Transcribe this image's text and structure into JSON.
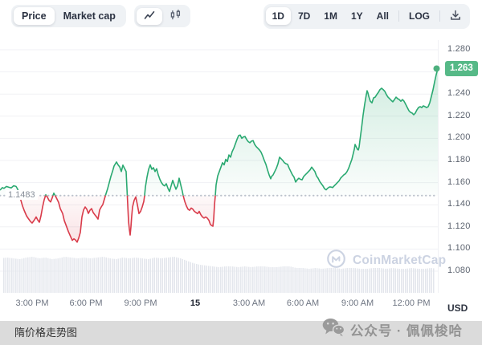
{
  "toolbar": {
    "metric_tabs": [
      {
        "label": "Price"
      },
      {
        "label": "Market cap"
      }
    ],
    "selected_metric": "Price",
    "chart_type_tabs": [
      {
        "icon": "line-chart-icon",
        "selected": true
      },
      {
        "icon": "candlestick-icon",
        "selected": false
      }
    ],
    "range_tabs": [
      {
        "label": "1D"
      },
      {
        "label": "7D"
      },
      {
        "label": "1M"
      },
      {
        "label": "1Y"
      },
      {
        "label": "All"
      }
    ],
    "selected_range": "1D",
    "log_label": "LOG",
    "download_icon": "download-icon"
  },
  "chart_data": {
    "type": "line",
    "unit": "USD",
    "baseline": {
      "label": "1.1483",
      "value": 1.1483
    },
    "current": {
      "label": "1.263",
      "value": 1.263
    },
    "colors": {
      "up": "#2aa971",
      "down": "#d93b4a",
      "badge": "#56b987",
      "dot": "#4db07e",
      "volume": "#e3e6ec",
      "grid": "#f0f1f4",
      "dotted": "#bcc2cc"
    },
    "y_axis": {
      "min": 1.08,
      "max": 1.28,
      "tick_labels": [
        "1.280",
        "1.240",
        "1.220",
        "1.200",
        "1.180",
        "1.160",
        "1.140",
        "1.120",
        "1.100",
        "1.080"
      ],
      "tick_values": [
        1.28,
        1.24,
        1.22,
        1.2,
        1.18,
        1.16,
        1.14,
        1.12,
        1.1,
        1.08
      ],
      "grid_values": [
        1.28,
        1.26,
        1.24,
        1.22,
        1.2,
        1.18,
        1.16,
        1.14,
        1.12,
        1.1,
        1.08
      ]
    },
    "x_axis": {
      "tick_labels": [
        "3:00 PM",
        "6:00 PM",
        "9:00 PM",
        "15",
        "3:00 AM",
        "6:00 AM",
        "9:00 AM",
        "12:00 PM"
      ],
      "bold_label": "15"
    },
    "series": [
      {
        "name": "price",
        "points": [
          [
            0,
            1.1532
          ],
          [
            3,
            1.1555
          ],
          [
            5,
            1.1548
          ],
          [
            8,
            1.1565
          ],
          [
            11,
            1.1558
          ],
          [
            14,
            1.1552
          ],
          [
            17,
            1.1572
          ],
          [
            20,
            1.1565
          ],
          [
            22,
            1.154
          ],
          [
            24,
            1.15
          ],
          [
            26,
            1.144
          ],
          [
            28,
            1.139
          ],
          [
            30,
            1.1351
          ],
          [
            33,
            1.13
          ],
          [
            35,
            1.1278
          ],
          [
            38,
            1.1248
          ],
          [
            40,
            1.1235
          ],
          [
            43,
            1.1265
          ],
          [
            45,
            1.129
          ],
          [
            47,
            1.1262
          ],
          [
            49,
            1.1242
          ],
          [
            51,
            1.13
          ],
          [
            53,
            1.138
          ],
          [
            55,
            1.1445
          ],
          [
            57,
            1.149
          ],
          [
            59,
            1.1468
          ],
          [
            61,
            1.144
          ],
          [
            63,
            1.1425
          ],
          [
            65,
            1.1462
          ],
          [
            67,
            1.1505
          ],
          [
            69,
            1.1478
          ],
          [
            71,
            1.145
          ],
          [
            73,
            1.142
          ],
          [
            75,
            1.1365
          ],
          [
            78,
            1.132
          ],
          [
            80,
            1.1258
          ],
          [
            83,
            1.12
          ],
          [
            85,
            1.116
          ],
          [
            88,
            1.111
          ],
          [
            90,
            1.1078
          ],
          [
            92,
            1.1092
          ],
          [
            94,
            1.1082
          ],
          [
            96,
            1.1062
          ],
          [
            98,
            1.11
          ],
          [
            100,
            1.115
          ],
          [
            102,
            1.129
          ],
          [
            104,
            1.1352
          ],
          [
            106,
            1.138
          ],
          [
            108,
            1.136
          ],
          [
            110,
            1.1322
          ],
          [
            112,
            1.135
          ],
          [
            114,
            1.1365
          ],
          [
            116,
            1.133
          ],
          [
            118,
            1.131
          ],
          [
            120,
            1.1292
          ],
          [
            122,
            1.127
          ],
          [
            124,
            1.1352
          ],
          [
            126,
            1.138
          ],
          [
            128,
            1.1402
          ],
          [
            130,
            1.1452
          ],
          [
            132,
            1.15
          ],
          [
            134,
            1.1546
          ],
          [
            136,
            1.16
          ],
          [
            138,
            1.1655
          ],
          [
            140,
            1.17
          ],
          [
            142,
            1.175
          ],
          [
            144,
            1.1775
          ],
          [
            145,
            1.1786
          ],
          [
            147,
            1.176
          ],
          [
            149,
            1.1742
          ],
          [
            151,
            1.17
          ],
          [
            153,
            1.1758
          ],
          [
            155,
            1.1728
          ],
          [
            157,
            1.17
          ],
          [
            158,
            1.155
          ],
          [
            159,
            1.14
          ],
          [
            160,
            1.125
          ],
          [
            161,
            1.118
          ],
          [
            162,
            1.1126
          ],
          [
            163,
            1.12
          ],
          [
            164,
            1.13
          ],
          [
            165,
            1.138
          ],
          [
            167,
            1.144
          ],
          [
            169,
            1.147
          ],
          [
            171,
            1.14
          ],
          [
            173,
            1.132
          ],
          [
            175,
            1.134
          ],
          [
            177,
            1.138
          ],
          [
            179,
            1.143
          ],
          [
            180,
            1.1483
          ],
          [
            181,
            1.156
          ],
          [
            183,
            1.165
          ],
          [
            185,
            1.172
          ],
          [
            187,
            1.176
          ],
          [
            189,
            1.172
          ],
          [
            191,
            1.1735
          ],
          [
            193,
            1.17
          ],
          [
            195,
            1.1725
          ],
          [
            197,
            1.167
          ],
          [
            199,
            1.163
          ],
          [
            201,
            1.16
          ],
          [
            203,
            1.158
          ],
          [
            205,
            1.157
          ],
          [
            207,
            1.159
          ],
          [
            209,
            1.155
          ],
          [
            211,
            1.152
          ],
          [
            213,
            1.157
          ],
          [
            215,
            1.162
          ],
          [
            217,
            1.158
          ],
          [
            219,
            1.154
          ],
          [
            221,
            1.157
          ],
          [
            223,
            1.164
          ],
          [
            225,
            1.158
          ],
          [
            227,
            1.152
          ],
          [
            228,
            1.1483
          ],
          [
            230,
            1.143
          ],
          [
            232,
            1.139
          ],
          [
            234,
            1.136
          ],
          [
            236,
            1.135
          ],
          [
            238,
            1.137
          ],
          [
            240,
            1.136
          ],
          [
            242,
            1.134
          ],
          [
            244,
            1.133
          ],
          [
            246,
            1.132
          ],
          [
            248,
            1.134
          ],
          [
            250,
            1.131
          ],
          [
            252,
            1.129
          ],
          [
            254,
            1.128
          ],
          [
            256,
            1.129
          ],
          [
            258,
            1.128
          ],
          [
            260,
            1.126
          ],
          [
            262,
            1.122
          ],
          [
            264,
            1.121
          ],
          [
            265,
            1.1206
          ],
          [
            266,
            1.127
          ],
          [
            267,
            1.14
          ],
          [
            268,
            1.148
          ],
          [
            269,
            1.158
          ],
          [
            271,
            1.166
          ],
          [
            273,
            1.17
          ],
          [
            275,
            1.174
          ],
          [
            277,
            1.178
          ],
          [
            279,
            1.176
          ],
          [
            281,
            1.181
          ],
          [
            283,
            1.179
          ],
          [
            285,
            1.185
          ],
          [
            287,
            1.183
          ],
          [
            289,
            1.188
          ],
          [
            291,
            1.191
          ],
          [
            293,
            1.195
          ],
          [
            295,
            1.199
          ],
          [
            297,
            1.2025
          ],
          [
            299,
            1.203
          ],
          [
            301,
            1.2
          ],
          [
            303,
            1.2013
          ],
          [
            305,
            1.2017
          ],
          [
            307,
            1.199
          ],
          [
            309,
            1.197
          ],
          [
            311,
            1.196
          ],
          [
            313,
            1.1975
          ],
          [
            315,
            1.198
          ],
          [
            317,
            1.1945
          ],
          [
            319,
            1.1925
          ],
          [
            321,
            1.191
          ],
          [
            323,
            1.1895
          ],
          [
            325,
            1.1875
          ],
          [
            327,
            1.184
          ],
          [
            329,
            1.18
          ],
          [
            331,
            1.1765
          ],
          [
            333,
            1.1715
          ],
          [
            335,
            1.167
          ],
          [
            337,
            1.1635
          ],
          [
            338,
            1.1655
          ],
          [
            340,
            1.167
          ],
          [
            342,
            1.17
          ],
          [
            344,
            1.173
          ],
          [
            346,
            1.177
          ],
          [
            348,
            1.183
          ],
          [
            350,
            1.1815
          ],
          [
            352,
            1.18
          ],
          [
            354,
            1.178
          ],
          [
            356,
            1.177
          ],
          [
            358,
            1.1765
          ],
          [
            360,
            1.173
          ],
          [
            362,
            1.17
          ],
          [
            364,
            1.167
          ],
          [
            366,
            1.165
          ],
          [
            368,
            1.1605
          ],
          [
            370,
            1.1625
          ],
          [
            372,
            1.164
          ],
          [
            374,
            1.163
          ],
          [
            376,
            1.1625
          ],
          [
            378,
            1.1655
          ],
          [
            380,
            1.167
          ],
          [
            382,
            1.1685
          ],
          [
            384,
            1.17
          ],
          [
            386,
            1.1715
          ],
          [
            388,
            1.174
          ],
          [
            390,
            1.172
          ],
          [
            392,
            1.17
          ],
          [
            394,
            1.166
          ],
          [
            396,
            1.164
          ],
          [
            398,
            1.161
          ],
          [
            400,
            1.159
          ],
          [
            402,
            1.157
          ],
          [
            404,
            1.1545
          ],
          [
            406,
            1.1535
          ],
          [
            408,
            1.155
          ],
          [
            410,
            1.156
          ],
          [
            412,
            1.156
          ],
          [
            414,
            1.1555
          ],
          [
            416,
            1.157
          ],
          [
            418,
            1.1585
          ],
          [
            420,
            1.16
          ],
          [
            422,
            1.1615
          ],
          [
            424,
            1.164
          ],
          [
            426,
            1.1655
          ],
          [
            428,
            1.167
          ],
          [
            430,
            1.168
          ],
          [
            432,
            1.17
          ],
          [
            434,
            1.173
          ],
          [
            436,
            1.177
          ],
          [
            438,
            1.181
          ],
          [
            440,
            1.187
          ],
          [
            441,
            1.19
          ],
          [
            442,
            1.1945
          ],
          [
            443,
            1.193
          ],
          [
            444,
            1.1915
          ],
          [
            445,
            1.19
          ],
          [
            446,
            1.1895
          ],
          [
            447,
            1.192
          ],
          [
            448,
            1.198
          ],
          [
            450,
            1.209
          ],
          [
            452,
            1.221
          ],
          [
            454,
            1.231
          ],
          [
            456,
            1.2395
          ],
          [
            457,
            1.243
          ],
          [
            458,
            1.241
          ],
          [
            459,
            1.238
          ],
          [
            461,
            1.2335
          ],
          [
            463,
            1.232
          ],
          [
            465,
            1.2365
          ],
          [
            467,
            1.2372
          ],
          [
            469,
            1.2395
          ],
          [
            471,
            1.2415
          ],
          [
            473,
            1.244
          ],
          [
            475,
            1.2452
          ],
          [
            477,
            1.244
          ],
          [
            479,
            1.2425
          ],
          [
            481,
            1.2395
          ],
          [
            483,
            1.2372
          ],
          [
            485,
            1.2358
          ],
          [
            487,
            1.2343
          ],
          [
            489,
            1.233
          ],
          [
            491,
            1.235
          ],
          [
            493,
            1.2372
          ],
          [
            495,
            1.2358
          ],
          [
            497,
            1.235
          ],
          [
            499,
            1.2335
          ],
          [
            501,
            1.235
          ],
          [
            503,
            1.2335
          ],
          [
            505,
            1.2307
          ],
          [
            507,
            1.2278
          ],
          [
            509,
            1.225
          ],
          [
            511,
            1.2235
          ],
          [
            513,
            1.2228
          ],
          [
            515,
            1.2213
          ],
          [
            517,
            1.2228
          ],
          [
            519,
            1.2257
          ],
          [
            521,
            1.2278
          ],
          [
            523,
            1.2286
          ],
          [
            525,
            1.2278
          ],
          [
            527,
            1.2293
          ],
          [
            529,
            1.2286
          ],
          [
            531,
            1.2278
          ],
          [
            533,
            1.2286
          ],
          [
            535,
            1.2322
          ],
          [
            537,
            1.238
          ],
          [
            539,
            1.2438
          ],
          [
            541,
            1.251
          ],
          [
            543,
            1.2575
          ],
          [
            545,
            1.263
          ]
        ]
      }
    ],
    "volume_profile": [
      43,
      44,
      43,
      42,
      44,
      45,
      43,
      44,
      42,
      43,
      45,
      44,
      43,
      44,
      43,
      44,
      45,
      43,
      42,
      44,
      43,
      44,
      43,
      42,
      44,
      43,
      44,
      45,
      43,
      40,
      37,
      35,
      34,
      33,
      32,
      33,
      33,
      32,
      33,
      32,
      33,
      33,
      32,
      32,
      33,
      33,
      31,
      31,
      30,
      31,
      30,
      31,
      31,
      30,
      31,
      31,
      30,
      30,
      31,
      31,
      30,
      31,
      30,
      30,
      31,
      30,
      30,
      31,
      30
    ],
    "watermark": "CoinMarketCap"
  },
  "footer": {
    "left_text": "隋价格走势图",
    "right_text": "公众号 · 佩佩梭哈"
  }
}
